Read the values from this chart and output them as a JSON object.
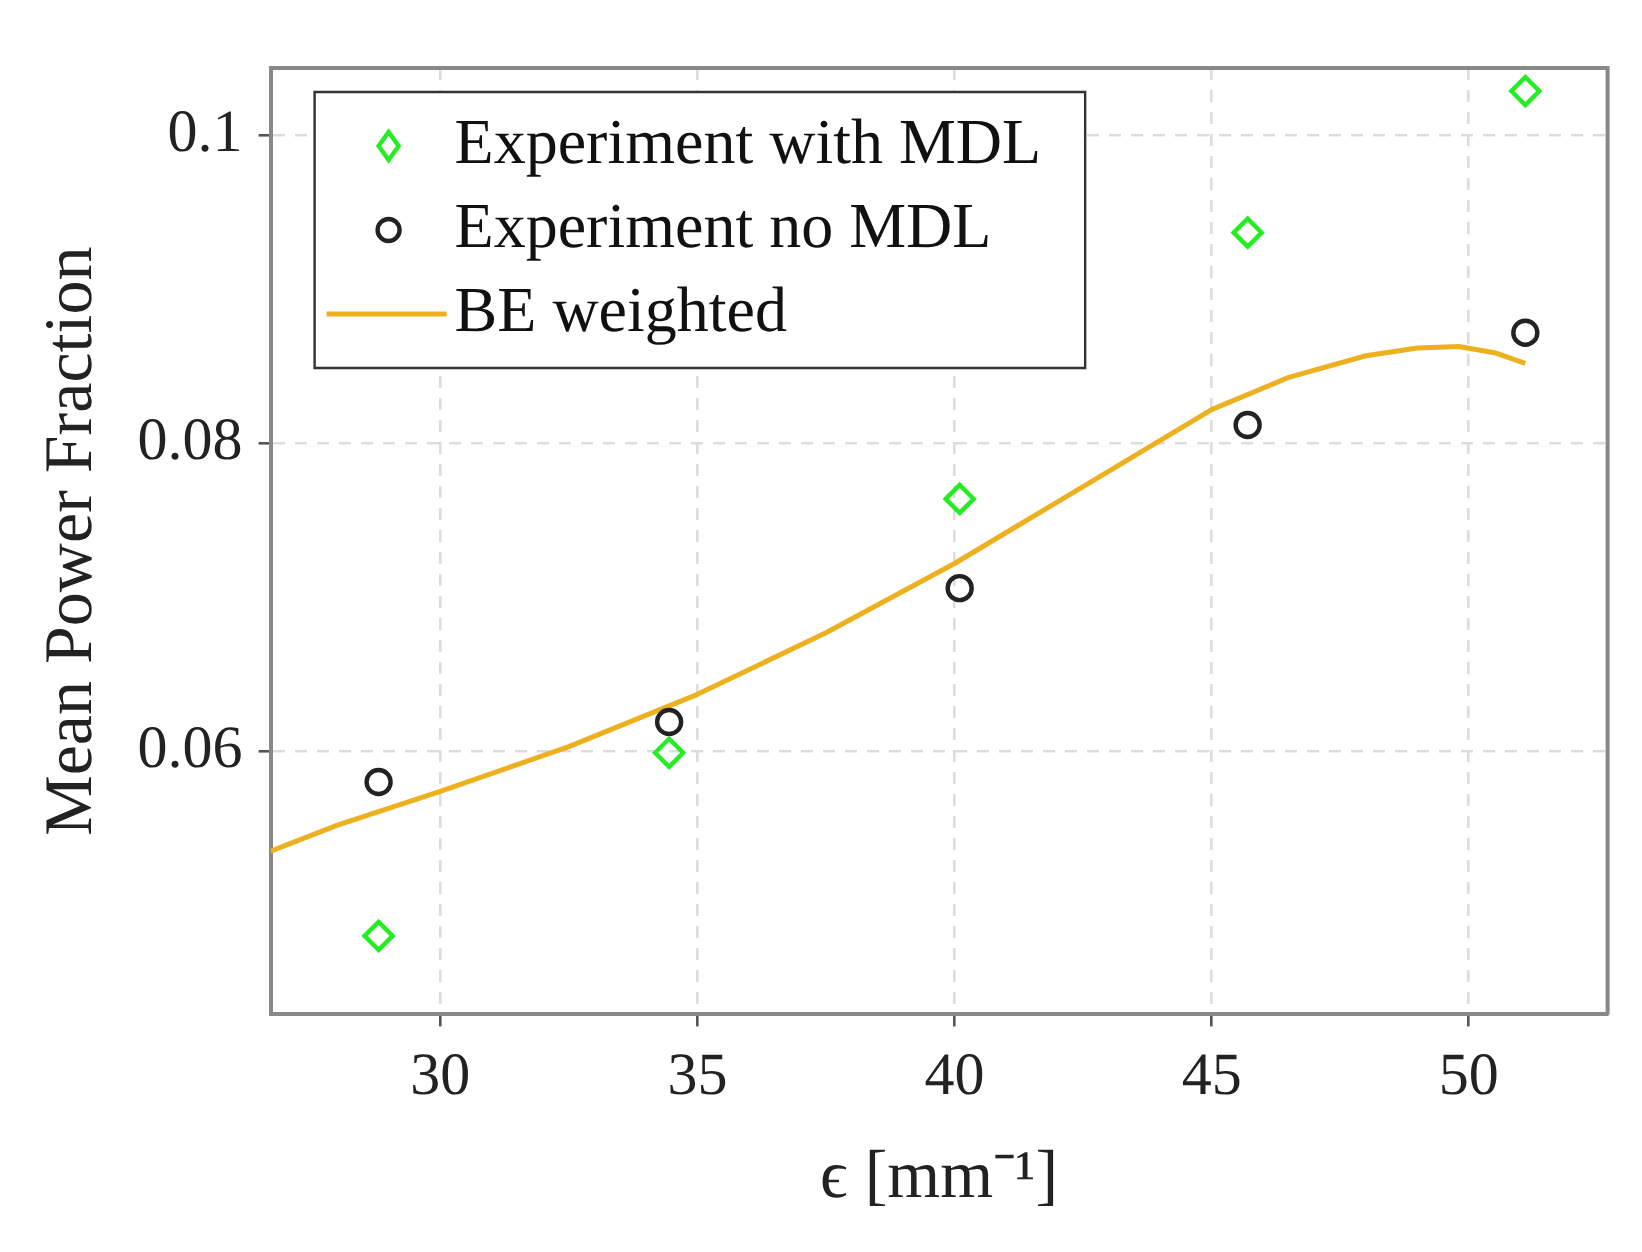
{
  "chart_data": {
    "type": "scatter",
    "xlabel": "ϵ [mm⁻¹]",
    "ylabel": "Mean Power Fraction",
    "xlim": [
      26.7,
      52.7
    ],
    "ylim": [
      0.0429,
      0.1044
    ],
    "xticks": [
      30,
      35,
      40,
      45,
      50
    ],
    "yticks": [
      {
        "value": 0.06,
        "label": "0.06"
      },
      {
        "value": 0.08,
        "label": "0.08"
      },
      {
        "value": 0.1,
        "label": "0.1"
      }
    ],
    "grid": true,
    "legend": "top left",
    "series": [
      {
        "name": "Experiment with MDL",
        "marker": "diamond",
        "color": "#22ee22",
        "x": [
          28.8,
          34.45,
          40.1,
          45.7,
          51.1
        ],
        "values": [
          0.048,
          0.0599,
          0.0764,
          0.0937,
          0.1029
        ]
      },
      {
        "name": "Experiment no MDL",
        "marker": "circle",
        "color": "#222222",
        "x": [
          28.8,
          34.45,
          40.1,
          45.7,
          51.1
        ],
        "values": [
          0.058,
          0.0619,
          0.0706,
          0.0812,
          0.0872
        ]
      },
      {
        "name": "BE weighted",
        "type": "line",
        "marker": "none",
        "line_style": "solid",
        "color": "#edb120",
        "x": [
          26.7,
          28,
          30,
          32.5,
          35,
          37.5,
          40,
          42.5,
          45,
          46.5,
          48,
          49,
          49.8,
          50.5,
          51.1
        ],
        "values": [
          0.0535,
          0.0552,
          0.0574,
          0.0603,
          0.0637,
          0.0677,
          0.0722,
          0.0772,
          0.0822,
          0.0843,
          0.0857,
          0.0862,
          0.0863,
          0.0859,
          0.0852
        ]
      }
    ]
  }
}
